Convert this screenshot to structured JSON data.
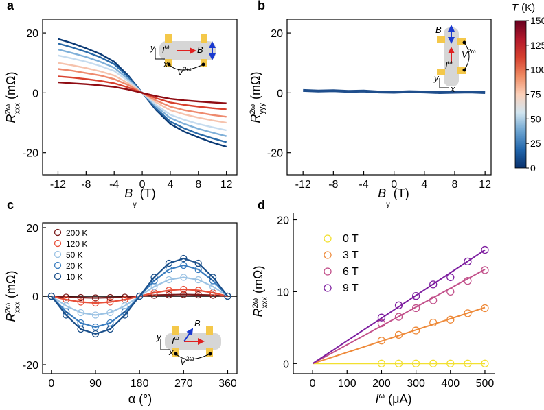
{
  "chart_data": [
    {
      "type": "line",
      "panel_label": "a",
      "xlabel": {
        "symbol": "B",
        "sub": "y",
        "unit": "(T)"
      },
      "ylabel": {
        "symbol": "R",
        "sup": "2ω",
        "sub": "xxx",
        "unit": "(mΩ)"
      },
      "x": [
        -12,
        -10,
        -8,
        -6,
        -4,
        -2,
        0,
        2,
        4,
        6,
        8,
        10,
        12
      ],
      "series": [
        {
          "color": "#0b3a75",
          "values": [
            18,
            16.6,
            14.9,
            13,
            10.4,
            5.8,
            0,
            -5.8,
            -10.4,
            -13,
            -14.9,
            -16.6,
            -18
          ]
        },
        {
          "color": "#2a6aa8",
          "values": [
            16.5,
            15.2,
            13.7,
            11.9,
            9.6,
            5.3,
            0,
            -5.3,
            -9.6,
            -11.9,
            -13.7,
            -15.2,
            -16.5
          ]
        },
        {
          "color": "#7fb0d9",
          "values": [
            14.5,
            13.3,
            12,
            10.4,
            8.4,
            4.6,
            0,
            -4.6,
            -8.4,
            -10.4,
            -12,
            -13.3,
            -14.5
          ]
        },
        {
          "color": "#c6dcef",
          "values": [
            12.5,
            11.5,
            10.4,
            9,
            7.3,
            4,
            0,
            -4,
            -7.3,
            -9,
            -10.4,
            -11.5,
            -12.5
          ]
        },
        {
          "color": "#f6c3ad",
          "values": [
            10,
            9.2,
            8.3,
            7.2,
            5.8,
            3.2,
            0,
            -3.2,
            -5.8,
            -7.2,
            -8.3,
            -9.2,
            -10
          ]
        },
        {
          "color": "#ee8a6e",
          "values": [
            8,
            7.4,
            6.6,
            5.8,
            4.6,
            2.6,
            0,
            -2.6,
            -4.6,
            -5.8,
            -6.6,
            -7.4,
            -8
          ]
        },
        {
          "color": "#d8412f",
          "values": [
            5.5,
            5.1,
            4.6,
            4,
            3.2,
            1.8,
            0,
            -1.8,
            -3.2,
            -4,
            -4.6,
            -5.1,
            -5.5
          ]
        },
        {
          "color": "#8f0c13",
          "values": [
            3.5,
            3.2,
            2.9,
            2.5,
            2,
            1.1,
            0,
            -1.1,
            -2,
            -2.5,
            -2.9,
            -3.2,
            -3.5
          ]
        }
      ],
      "xlim": [
        -14.2,
        13.5
      ],
      "xticks": [
        -12,
        -8,
        -4,
        0,
        4,
        8,
        12
      ],
      "ylim": [
        -27.4,
        24.6
      ],
      "yticks": [
        -20,
        0,
        20
      ],
      "inset": [
        {
          "text": "I",
          "sup": "ω"
        },
        {
          "text": "B"
        },
        {
          "text": "V",
          "sup": "2ω"
        },
        {
          "text": "y"
        },
        {
          "text": "x"
        }
      ],
      "colorbar": {
        "label": {
          "symbol": "T",
          "unit": "(K)"
        },
        "lim": [
          0,
          150
        ],
        "ticks": [
          0,
          25,
          50,
          75,
          100,
          125,
          150
        ],
        "colors": [
          "#08306b",
          "#2166ac",
          "#6ba3d0",
          "#d1e5f0",
          "#fbd0b9",
          "#ef8a62",
          "#d6402f",
          "#b2182b",
          "#67001f"
        ]
      }
    },
    {
      "type": "line",
      "panel_label": "b",
      "xlabel": {
        "symbol": "B",
        "sub": "y",
        "unit": "(T)"
      },
      "ylabel": {
        "symbol": "R",
        "sup": "2ω",
        "sub": "yyy",
        "unit": "(mΩ)"
      },
      "x": [
        -12,
        -10,
        -8,
        -6,
        -4,
        -2,
        0,
        2,
        4,
        6,
        8,
        10,
        12
      ],
      "series": [
        {
          "color": "#1f4e8c",
          "values": [
            0.8,
            0.6,
            0.7,
            0.5,
            0.6,
            0.3,
            0.2,
            0.4,
            0.3,
            0.1,
            0.2,
            0.3,
            0.1
          ]
        }
      ],
      "xlim": [
        -14.1,
        12.8
      ],
      "xticks": [
        -12,
        -8,
        -4,
        0,
        4,
        8,
        12
      ],
      "ylim": [
        -27.4,
        24.6
      ],
      "yticks": [
        -20,
        0,
        20
      ],
      "inset": [
        {
          "text": "B"
        },
        {
          "text": "V",
          "sup": "2ω"
        },
        {
          "text": "I",
          "sup": "ω"
        },
        {
          "text": "y"
        },
        {
          "text": "x"
        }
      ]
    },
    {
      "type": "scatter",
      "panel_label": "c",
      "xlabel": {
        "symbol": "α",
        "unit": "(°)"
      },
      "ylabel": {
        "symbol": "R",
        "sup": "2ω",
        "sub": "xxx",
        "unit": "(mΩ)"
      },
      "x": [
        0,
        30,
        60,
        90,
        120,
        150,
        180,
        210,
        240,
        270,
        300,
        330,
        360
      ],
      "series": [
        {
          "name": "200 K",
          "color": "#7a1a1a",
          "values": [
            0,
            -0.3,
            -0.4,
            -0.5,
            -0.4,
            -0.3,
            0,
            0.3,
            0.4,
            0.5,
            0.4,
            0.3,
            0
          ]
        },
        {
          "name": "120 K",
          "color": "#e8503a",
          "values": [
            0,
            -1,
            -1.7,
            -2,
            -1.7,
            -1,
            0,
            1,
            1.7,
            2,
            1.7,
            1,
            0
          ]
        },
        {
          "name": "50 K",
          "color": "#9cc3e4",
          "values": [
            0,
            -2.8,
            -4.8,
            -5.5,
            -4.8,
            -2.8,
            0,
            2.8,
            4.8,
            5.5,
            4.8,
            2.8,
            0
          ]
        },
        {
          "name": "20 K",
          "color": "#3a7dbf",
          "values": [
            0,
            -4.5,
            -7.8,
            -9,
            -7.8,
            -4.5,
            0,
            4.5,
            7.8,
            9,
            7.8,
            4.5,
            0
          ]
        },
        {
          "name": "10 K",
          "color": "#1a4f8a",
          "values": [
            0,
            -5.5,
            -9.6,
            -11,
            -9.6,
            -5.5,
            0,
            5.5,
            9.6,
            11,
            9.6,
            5.5,
            0
          ]
        }
      ],
      "xlim": [
        -18,
        379
      ],
      "xticks": [
        0,
        90,
        180,
        270,
        360
      ],
      "ylim": [
        -22.6,
        21.4
      ],
      "yticks": [
        -20,
        0,
        20
      ],
      "reference_line": 0,
      "legend": "upper left",
      "inset": [
        {
          "text": "B"
        },
        {
          "text": "I",
          "sup": "ω"
        },
        {
          "text": "V",
          "sup": "2ω"
        },
        {
          "text": "y"
        },
        {
          "text": "x"
        }
      ]
    },
    {
      "type": "scatter",
      "panel_label": "d",
      "xlabel": {
        "symbol": "I",
        "sup": "ω",
        "unit": "(μA)"
      },
      "ylabel": {
        "symbol": "R",
        "sup": "2ω",
        "sub": "xxx",
        "unit": "(mΩ)"
      },
      "x": [
        200,
        250,
        300,
        350,
        400,
        450,
        500
      ],
      "fit_x": [
        0,
        500
      ],
      "series": [
        {
          "name": "0 T",
          "color": "#f2e030",
          "values": [
            0,
            0,
            0,
            0,
            0,
            0,
            0
          ],
          "fit": [
            0,
            0
          ]
        },
        {
          "name": "3 T",
          "color": "#ee8a3a",
          "values": [
            3.2,
            4.0,
            4.6,
            5.7,
            6.1,
            7.0,
            7.7
          ],
          "fit": [
            0,
            7.8
          ]
        },
        {
          "name": "6 T",
          "color": "#c2508a",
          "values": [
            5.6,
            6.5,
            7.7,
            8.8,
            10.0,
            11.5,
            13.0
          ],
          "fit": [
            0,
            13.1
          ]
        },
        {
          "name": "9 T",
          "color": "#7e1fa0",
          "values": [
            6.4,
            8.1,
            9.4,
            11.0,
            12.0,
            14.2,
            15.8
          ],
          "fit": [
            0,
            15.8
          ]
        }
      ],
      "xlim": [
        -56,
        528
      ],
      "xticks": [
        0,
        100,
        200,
        300,
        400,
        500
      ],
      "ylim": [
        -1.4,
        21
      ],
      "yticks": [
        0,
        10,
        20
      ],
      "legend": "upper left"
    }
  ]
}
